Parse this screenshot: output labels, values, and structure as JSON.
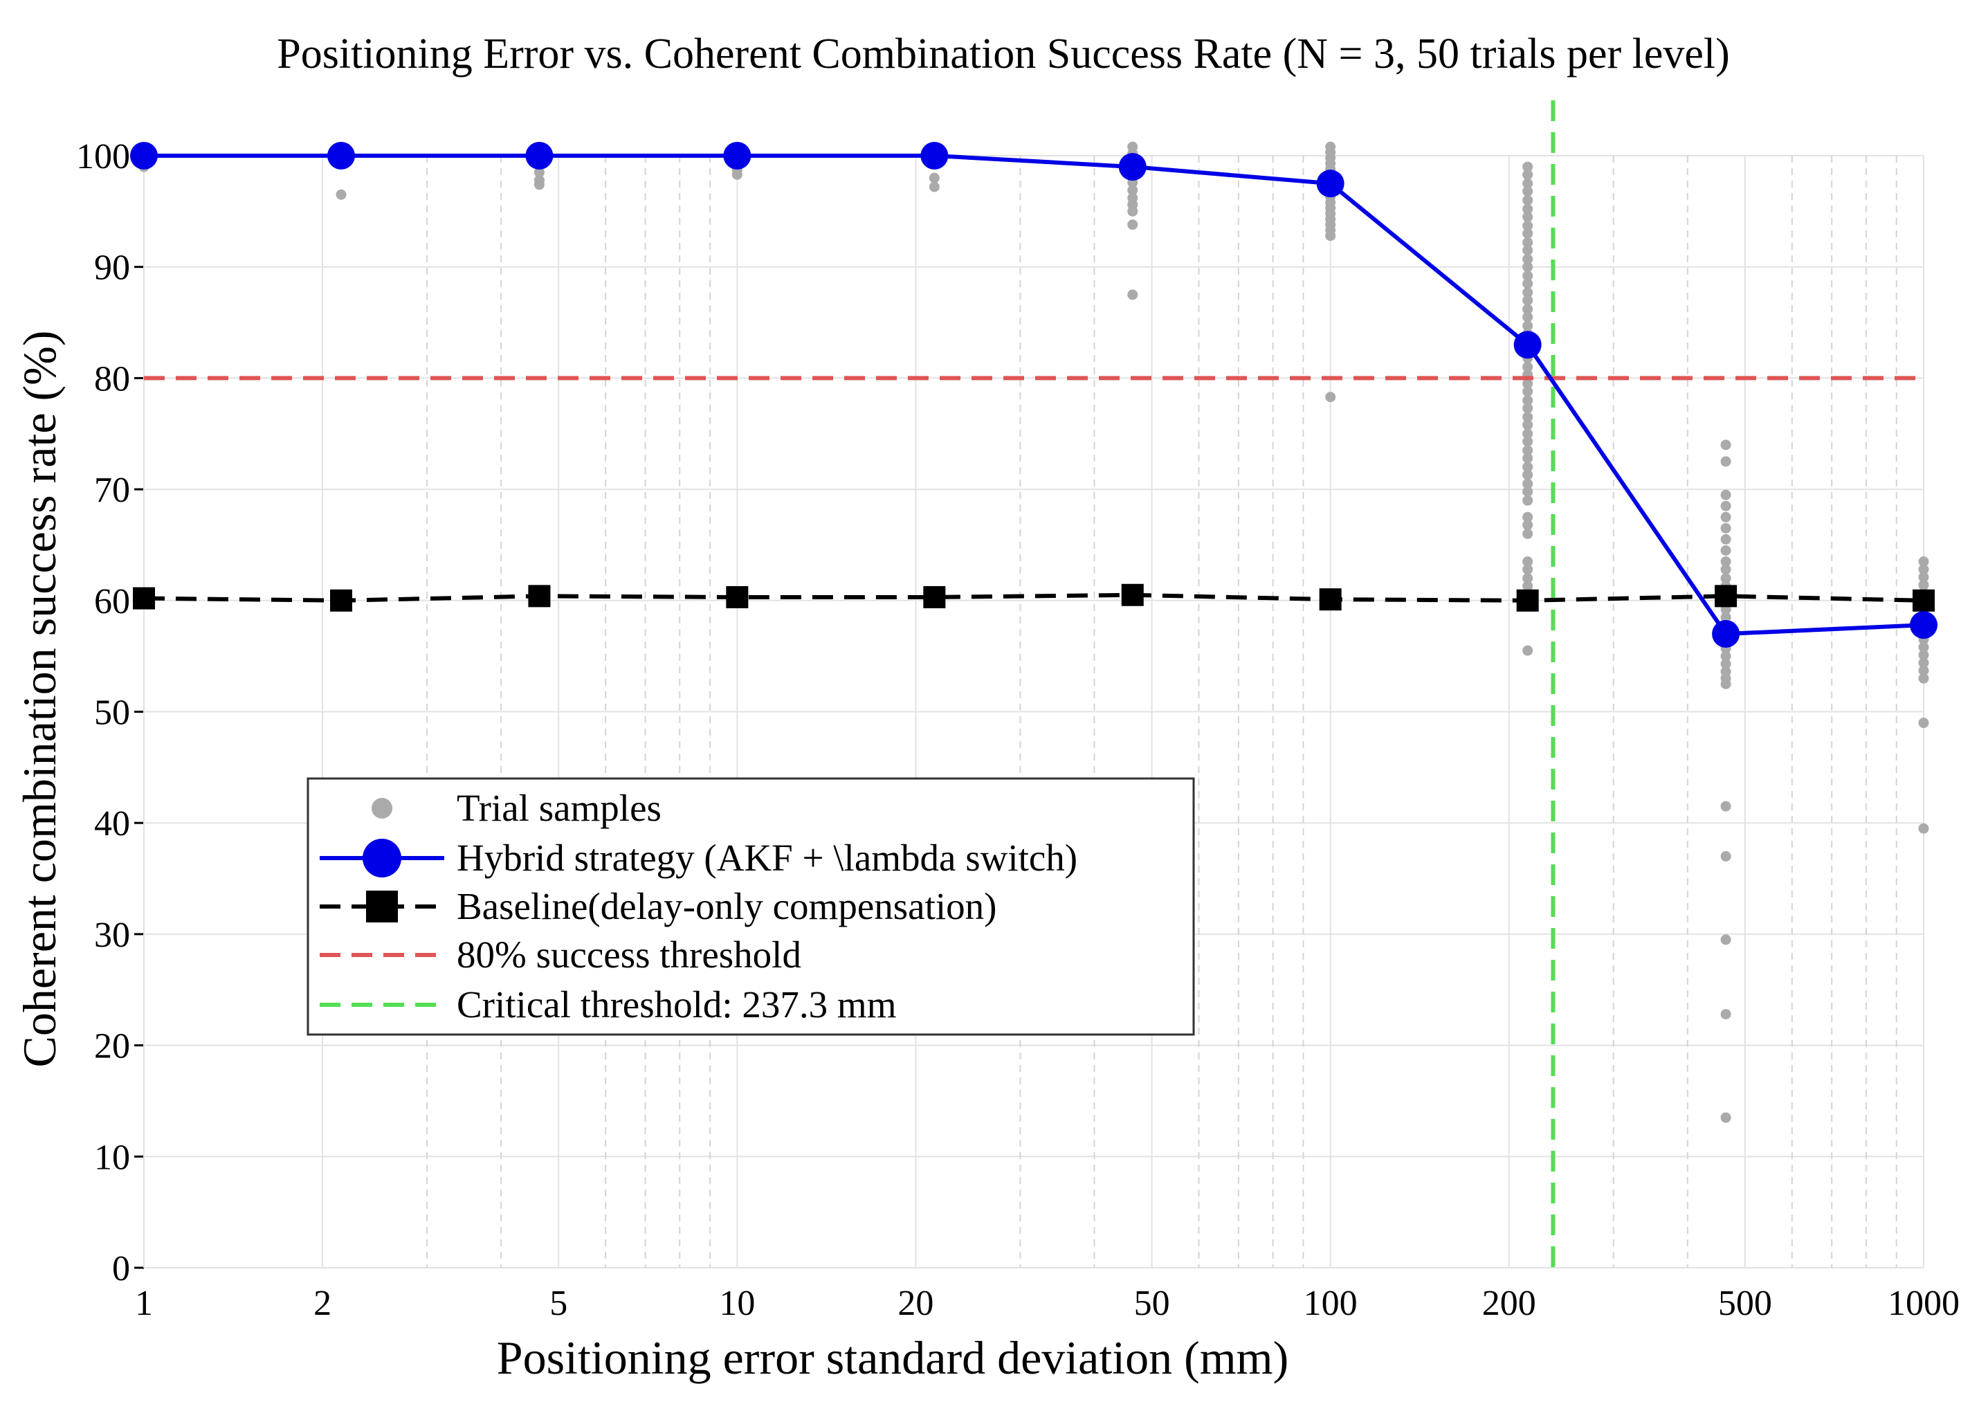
{
  "chart_data": {
    "type": "line",
    "title": "Positioning Error vs. Coherent Combination Success Rate (N = 3, 50 trials per level)",
    "xlabel": "Positioning error standard deviation (mm)",
    "ylabel": "Coherent combination success rate (%)",
    "xscale": "log",
    "xlim": [
      1,
      1000
    ],
    "ylim": [
      0,
      100
    ],
    "xticks": [
      1,
      2,
      5,
      10,
      20,
      50,
      100,
      200,
      500,
      1000
    ],
    "xtick_labels": [
      "1",
      "2",
      "5",
      "10",
      "20",
      "50",
      "100",
      "200",
      "500",
      "1000"
    ],
    "yticks": [
      0,
      10,
      20,
      30,
      40,
      50,
      60,
      70,
      80,
      90,
      100
    ],
    "ytick_labels": [
      "0",
      "10",
      "20",
      "30",
      "40",
      "50",
      "60",
      "70",
      "80",
      "90",
      "100"
    ],
    "grid": true,
    "x": [
      1,
      2.15,
      4.64,
      10,
      21.5,
      46.4,
      100,
      215,
      464,
      1000
    ],
    "series": [
      {
        "name": "Hybrid strategy (AKF + \\lambda switch)",
        "color": "#0000e6",
        "style": "solid",
        "marker": "circle",
        "values": [
          100,
          100,
          100,
          100,
          100,
          99,
          97.5,
          83,
          57,
          57.8
        ]
      },
      {
        "name": "Baseline(delay-only compensation)",
        "color": "#000000",
        "style": "dashed",
        "marker": "square",
        "values": [
          60.2,
          60,
          60.4,
          60.3,
          60.3,
          60.5,
          60.1,
          60,
          60.4,
          60
        ]
      }
    ],
    "scatter": {
      "name": "Trial samples",
      "color": "#aaaaaa",
      "points": [
        [
          1,
          100
        ],
        [
          1,
          99.6
        ],
        [
          1,
          99.3
        ],
        [
          1,
          99.0
        ],
        [
          2.15,
          100.5
        ],
        [
          2.15,
          100
        ],
        [
          2.15,
          99.5
        ],
        [
          2.15,
          96.5
        ],
        [
          4.64,
          100.3
        ],
        [
          4.64,
          99.5
        ],
        [
          4.64,
          98.5
        ],
        [
          4.64,
          97.8
        ],
        [
          4.64,
          97.4
        ],
        [
          10,
          100.5
        ],
        [
          10,
          99.5
        ],
        [
          10,
          98.7
        ],
        [
          10,
          98.3
        ],
        [
          21.5,
          100.5
        ],
        [
          21.5,
          99.5
        ],
        [
          21.5,
          98.0
        ],
        [
          21.5,
          97.2
        ],
        [
          46.4,
          100.8
        ],
        [
          46.4,
          100.2
        ],
        [
          46.4,
          99.6
        ],
        [
          46.4,
          99.0
        ],
        [
          46.4,
          98.3
        ],
        [
          46.4,
          97.6
        ],
        [
          46.4,
          96.9
        ],
        [
          46.4,
          96.2
        ],
        [
          46.4,
          95.6
        ],
        [
          46.4,
          95.0
        ],
        [
          46.4,
          93.8
        ],
        [
          46.4,
          87.5
        ],
        [
          100,
          100.8
        ],
        [
          100,
          100.3
        ],
        [
          100,
          99.8
        ],
        [
          100,
          99.3
        ],
        [
          100,
          98.8
        ],
        [
          100,
          98.3
        ],
        [
          100,
          97.8
        ],
        [
          100,
          97.3
        ],
        [
          100,
          96.8
        ],
        [
          100,
          96.3
        ],
        [
          100,
          95.8
        ],
        [
          100,
          95.3
        ],
        [
          100,
          94.8
        ],
        [
          100,
          94.3
        ],
        [
          100,
          93.8
        ],
        [
          100,
          93.3
        ],
        [
          100,
          92.8
        ],
        [
          100,
          78.3
        ],
        [
          215,
          99.0
        ],
        [
          215,
          98.3
        ],
        [
          215,
          97.5
        ],
        [
          215,
          96.8
        ],
        [
          215,
          96.0
        ],
        [
          215,
          95.2
        ],
        [
          215,
          94.5
        ],
        [
          215,
          93.7
        ],
        [
          215,
          93.0
        ],
        [
          215,
          92.2
        ],
        [
          215,
          91.5
        ],
        [
          215,
          90.7
        ],
        [
          215,
          90.0
        ],
        [
          215,
          89.2
        ],
        [
          215,
          88.5
        ],
        [
          215,
          87.7
        ],
        [
          215,
          87.0
        ],
        [
          215,
          86.2
        ],
        [
          215,
          85.5
        ],
        [
          215,
          84.7
        ],
        [
          215,
          84.0
        ],
        [
          215,
          82.5
        ],
        [
          215,
          81.8
        ],
        [
          215,
          81.0
        ],
        [
          215,
          80.3
        ],
        [
          215,
          79.5
        ],
        [
          215,
          78.8
        ],
        [
          215,
          78.0
        ],
        [
          215,
          77.3
        ],
        [
          215,
          76.5
        ],
        [
          215,
          75.8
        ],
        [
          215,
          75.0
        ],
        [
          215,
          74.3
        ],
        [
          215,
          73.5
        ],
        [
          215,
          72.8
        ],
        [
          215,
          72.0
        ],
        [
          215,
          71.3
        ],
        [
          215,
          70.5
        ],
        [
          215,
          69.8
        ],
        [
          215,
          69.0
        ],
        [
          215,
          67.5
        ],
        [
          215,
          66.8
        ],
        [
          215,
          66.0
        ],
        [
          215,
          63.5
        ],
        [
          215,
          62.8
        ],
        [
          215,
          62.0
        ],
        [
          215,
          61.3
        ],
        [
          215,
          55.5
        ],
        [
          464,
          74.0
        ],
        [
          464,
          72.5
        ],
        [
          464,
          69.5
        ],
        [
          464,
          68.5
        ],
        [
          464,
          67.5
        ],
        [
          464,
          66.5
        ],
        [
          464,
          65.5
        ],
        [
          464,
          64.5
        ],
        [
          464,
          63.5
        ],
        [
          464,
          62.8
        ],
        [
          464,
          62.0
        ],
        [
          464,
          61.3
        ],
        [
          464,
          60.6
        ],
        [
          464,
          59.9
        ],
        [
          464,
          59.2
        ],
        [
          464,
          58.5
        ],
        [
          464,
          57.8
        ],
        [
          464,
          57.1
        ],
        [
          464,
          56.4
        ],
        [
          464,
          55.7
        ],
        [
          464,
          55.0
        ],
        [
          464,
          54.3
        ],
        [
          464,
          53.6
        ],
        [
          464,
          53.0
        ],
        [
          464,
          52.5
        ],
        [
          464,
          41.5
        ],
        [
          464,
          37.0
        ],
        [
          464,
          29.5
        ],
        [
          464,
          22.8
        ],
        [
          464,
          13.5
        ],
        [
          1000,
          63.5
        ],
        [
          1000,
          62.8
        ],
        [
          1000,
          62.1
        ],
        [
          1000,
          61.4
        ],
        [
          1000,
          60.7
        ],
        [
          1000,
          60.0
        ],
        [
          1000,
          59.3
        ],
        [
          1000,
          58.6
        ],
        [
          1000,
          57.9
        ],
        [
          1000,
          57.2
        ],
        [
          1000,
          56.5
        ],
        [
          1000,
          55.8
        ],
        [
          1000,
          55.1
        ],
        [
          1000,
          54.4
        ],
        [
          1000,
          53.7
        ],
        [
          1000,
          53.0
        ],
        [
          1000,
          49.0
        ],
        [
          1000,
          39.5
        ]
      ]
    },
    "reference_lines": [
      {
        "name": "80% success threshold",
        "orientation": "horizontal",
        "value": 80,
        "color": "#e05555",
        "style": "dashed"
      },
      {
        "name": "Critical threshold: 237.3 mm",
        "orientation": "vertical",
        "value": 237.3,
        "color": "#55dd55",
        "style": "dashed"
      }
    ],
    "legend": {
      "position": "lower-left",
      "entries": [
        "Trial samples",
        "Hybrid strategy (AKF + \\lambda switch)",
        "Baseline(delay-only compensation)",
        "80% success threshold",
        "Critical threshold: 237.3 mm"
      ]
    }
  }
}
